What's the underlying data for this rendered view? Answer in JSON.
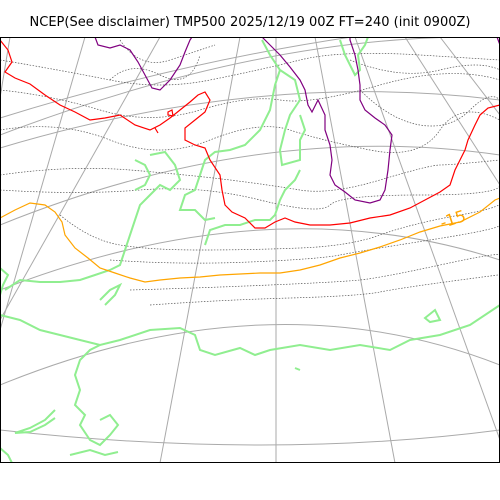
{
  "title": "NCEP(See disclaimer) TMP500 2025/12/19 00Z FT=240 (init 0900Z)",
  "contour_label": "-15",
  "colors": {
    "background": "#ffffff",
    "grid": "#aaaaaa",
    "isotherm_dotted": "#555555",
    "coastline": "#90ee90",
    "contour_minus15": "#ffa500",
    "contour_red": "#ff0000",
    "contour_purple": "#800080"
  }
}
